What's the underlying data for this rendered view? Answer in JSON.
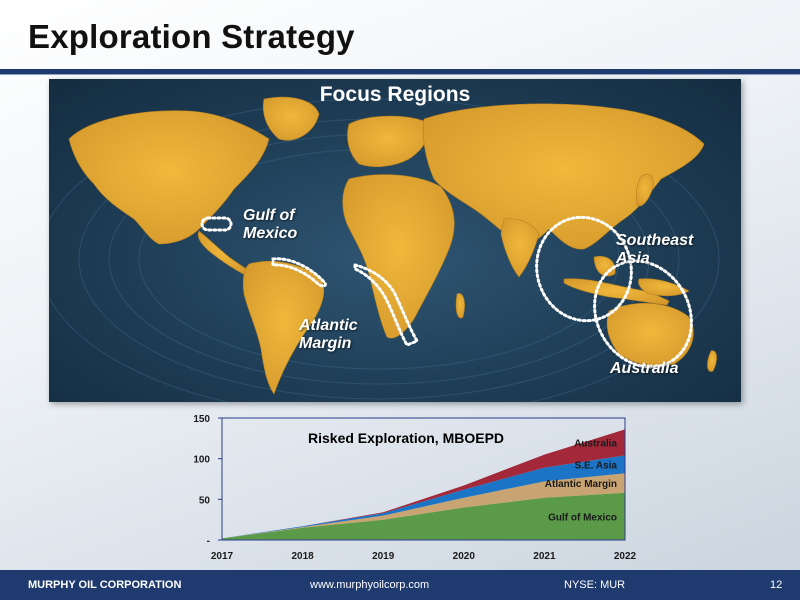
{
  "header": {
    "title": "Exploration Strategy"
  },
  "map": {
    "title": "Focus Regions",
    "regions": [
      {
        "id": "gulf",
        "label_line1": "Gulf of",
        "label_line2": "Mexico"
      },
      {
        "id": "atlantic",
        "label_line1": "Atlantic",
        "label_line2": "Margin"
      },
      {
        "id": "seasia",
        "label_line1": "Southeast",
        "label_line2": "Asia"
      },
      {
        "id": "australia",
        "label_line1": "Australia",
        "label_line2": ""
      }
    ],
    "colors": {
      "ocean": "#1e3d55",
      "land": "#e3a530",
      "outline": "#ffffff"
    }
  },
  "chart_data": {
    "type": "area",
    "stacked": true,
    "title": "Risked Exploration, MBOEPD",
    "x": [
      2017,
      2018,
      2019,
      2020,
      2021,
      2022
    ],
    "x_tick_labels": [
      "2017",
      "2018",
      "2019",
      "2020",
      "2021",
      "2022"
    ],
    "ylim": [
      0,
      150
    ],
    "y_ticks": [
      0,
      50,
      100,
      150
    ],
    "y_tick_labels": [
      "-",
      "50",
      "100",
      "150"
    ],
    "series": [
      {
        "name": "Gulf of Mexico",
        "color": "#5a9a48",
        "values": [
          2,
          15,
          25,
          40,
          52,
          58
        ]
      },
      {
        "name": "Atlantic Margin",
        "color": "#c8a472",
        "values": [
          0,
          1,
          5,
          12,
          20,
          24
        ]
      },
      {
        "name": "S.E. Asia",
        "color": "#1b74c6",
        "values": [
          0,
          1,
          3,
          10,
          17,
          22
        ]
      },
      {
        "name": "Australia",
        "color": "#a3283a",
        "values": [
          0,
          0,
          1,
          5,
          16,
          32
        ]
      }
    ],
    "colors": {
      "plot_border": "#2d3a8c",
      "text": "#1a1a1a"
    }
  },
  "footer": {
    "company": "MURPHY OIL CORPORATION",
    "website": "www.murphyoilcorp.com",
    "ticker": "NYSE: MUR",
    "page": "12"
  }
}
